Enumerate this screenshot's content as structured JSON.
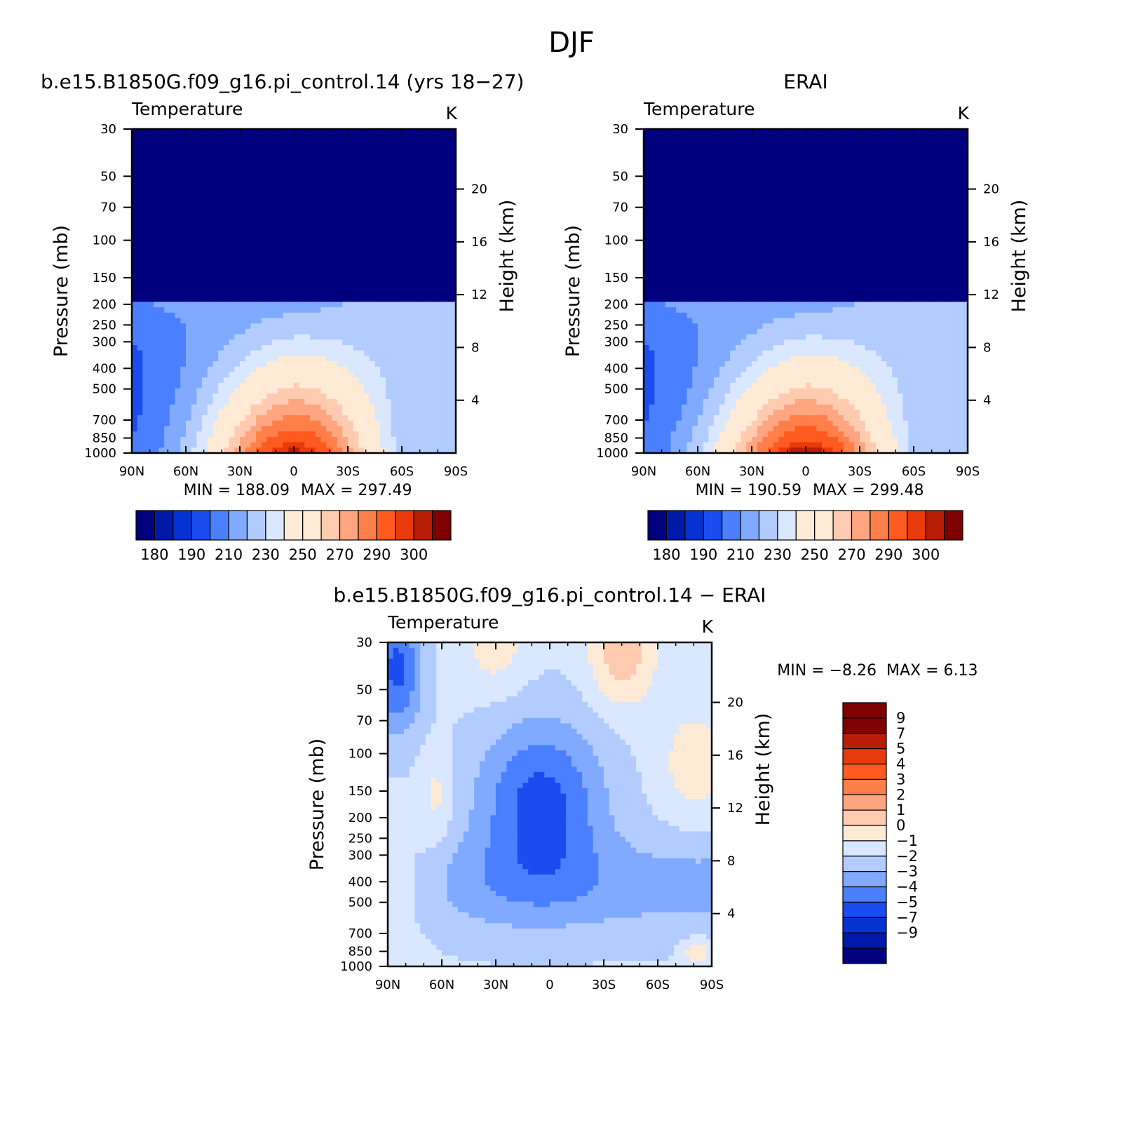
{
  "figure": {
    "title": "DJF"
  },
  "chart_data": [
    {
      "type": "heatmap",
      "panel_title": "b.e15.B1850G.f09_g16.pi_control.14 (yrs 18-27)",
      "left_string": "Temperature",
      "units": "K",
      "xlabel": "",
      "ylabel": "Pressure (mb)",
      "y2label": "Height (km)",
      "x_ticks": [
        "90N",
        "60N",
        "30N",
        "0",
        "30S",
        "60S",
        "90S"
      ],
      "x_values": [
        90,
        60,
        30,
        0,
        -30,
        -60,
        -90
      ],
      "xlim": [
        90,
        -90
      ],
      "y_ticks": [
        "30",
        "50",
        "70",
        "100",
        "150",
        "200",
        "250",
        "300",
        "400",
        "500",
        "700",
        "850",
        "1000"
      ],
      "y_values": [
        30,
        50,
        70,
        100,
        150,
        200,
        250,
        300,
        400,
        500,
        700,
        850,
        1000
      ],
      "ylim": [
        1000,
        30
      ],
      "y_scale": "log",
      "y2_ticks": [
        "4",
        "8",
        "12",
        "16",
        "20"
      ],
      "y2_values_km": [
        4,
        8,
        12,
        16,
        20
      ],
      "stats": {
        "min_label": "MIN =",
        "min": "188.09",
        "max_label": "MAX =",
        "max": "297.49"
      },
      "colorbar": {
        "orientation": "horizontal",
        "levels": [
          175,
          180,
          185,
          190,
          200,
          210,
          220,
          230,
          240,
          250,
          260,
          270,
          280,
          290,
          295,
          300
        ],
        "labels": [
          "180",
          "190",
          "210",
          "230",
          "250",
          "270",
          "290",
          "300"
        ]
      },
      "field": "model"
    },
    {
      "type": "heatmap",
      "panel_title": "ERAI",
      "left_string": "Temperature",
      "units": "K",
      "xlabel": "",
      "ylabel": "Pressure (mb)",
      "y2label": "Height (km)",
      "x_ticks": [
        "90N",
        "60N",
        "30N",
        "0",
        "30S",
        "60S",
        "90S"
      ],
      "x_values": [
        90,
        60,
        30,
        0,
        -30,
        -60,
        -90
      ],
      "xlim": [
        90,
        -90
      ],
      "y_ticks": [
        "30",
        "50",
        "70",
        "100",
        "150",
        "200",
        "250",
        "300",
        "400",
        "500",
        "700",
        "850",
        "1000"
      ],
      "y_values": [
        30,
        50,
        70,
        100,
        150,
        200,
        250,
        300,
        400,
        500,
        700,
        850,
        1000
      ],
      "ylim": [
        1000,
        30
      ],
      "y_scale": "log",
      "y2_ticks": [
        "4",
        "8",
        "12",
        "16",
        "20"
      ],
      "y2_values_km": [
        4,
        8,
        12,
        16,
        20
      ],
      "stats": {
        "min_label": "MIN =",
        "min": "190.59",
        "max_label": "MAX =",
        "max": "299.48"
      },
      "colorbar": {
        "orientation": "horizontal",
        "levels": [
          175,
          180,
          185,
          190,
          200,
          210,
          220,
          230,
          240,
          250,
          260,
          270,
          280,
          290,
          295,
          300
        ],
        "labels": [
          "180",
          "190",
          "210",
          "230",
          "250",
          "270",
          "290",
          "300"
        ]
      },
      "field": "obs"
    },
    {
      "type": "heatmap",
      "panel_title": "b.e15.B1850G.f09_g16.pi_control.14 - ERAI",
      "left_string": "Temperature",
      "units": "K",
      "xlabel": "",
      "ylabel": "Pressure (mb)",
      "y2label": "Height (km)",
      "x_ticks": [
        "90N",
        "60N",
        "30N",
        "0",
        "30S",
        "60S",
        "90S"
      ],
      "x_values": [
        90,
        60,
        30,
        0,
        -30,
        -60,
        -90
      ],
      "xlim": [
        90,
        -90
      ],
      "y_ticks": [
        "30",
        "50",
        "70",
        "100",
        "150",
        "200",
        "250",
        "300",
        "400",
        "500",
        "700",
        "850",
        "1000"
      ],
      "y_values": [
        30,
        50,
        70,
        100,
        150,
        200,
        250,
        300,
        400,
        500,
        700,
        850,
        1000
      ],
      "ylim": [
        1000,
        30
      ],
      "y_scale": "log",
      "y2_ticks": [
        "4",
        "8",
        "12",
        "16",
        "20"
      ],
      "y2_values_km": [
        4,
        8,
        12,
        16,
        20
      ],
      "stats": {
        "min_label": "MIN =",
        "min": "-8.26",
        "max_label": "MAX =",
        "max": "6.13"
      },
      "colorbar": {
        "orientation": "vertical",
        "levels": [
          -9,
          -7,
          -5,
          -4,
          -3,
          -2,
          -1,
          0,
          1,
          2,
          3,
          4,
          5,
          7,
          9
        ],
        "labels": [
          "9",
          "7",
          "5",
          "4",
          "3",
          "2",
          "1",
          "0",
          "-1",
          "-2",
          "-3",
          "-4",
          "-5",
          "-7",
          "-9"
        ]
      },
      "field": "diff"
    }
  ],
  "palette": [
    "#00007f",
    "#0019a8",
    "#0433d1",
    "#1a4df0",
    "#4a80ff",
    "#80aaff",
    "#b3ccff",
    "#d9e8ff",
    "#ffead6",
    "#ffcbb0",
    "#ffa580",
    "#ff7f4a",
    "#ff5a1f",
    "#e83a0a",
    "#b81e06",
    "#7f0000"
  ]
}
